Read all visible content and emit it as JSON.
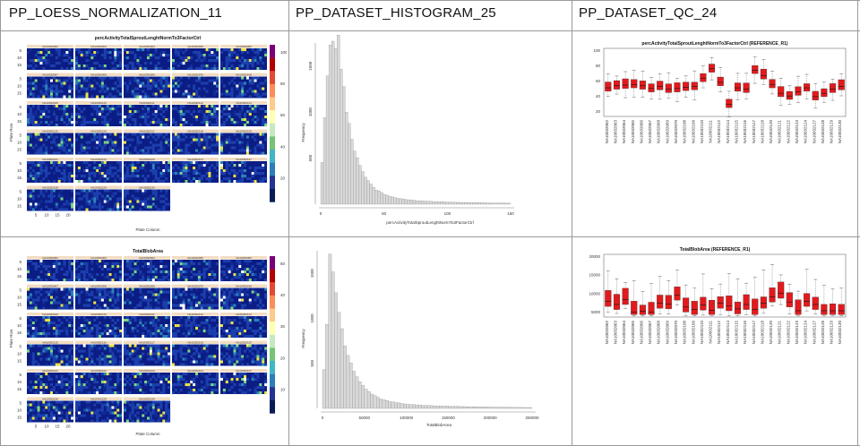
{
  "columns": [
    {
      "id": "loess",
      "label": "PP_LOESS_NORMALIZATION_11"
    },
    {
      "id": "histogram",
      "label": "PP_DATASET_HISTOGRAM_25"
    },
    {
      "id": "qc",
      "label": "PP_DATASET_QC_24"
    }
  ],
  "rows": [
    {
      "heatmap": {
        "title": "percActivityTotalSproutLenghtNormTo3FactorCtrl",
        "xlabel": "Plate Column",
        "ylabel": "Plate Row",
        "plates": [
          "NA10032062",
          "NA10032063",
          "NA10032064",
          "NA10032065",
          "NA10032066",
          "NA10032067",
          "NA10032068",
          "NA10032069",
          "NA10032070",
          "NA10032108",
          "NA10032109",
          "NA10032110",
          "NA10032111",
          "NA10032112",
          "NA10032114",
          "NA10032115",
          "NA10032116",
          "NA10032117",
          "NA10032118",
          "NA10032120",
          "NA10032121",
          "NA10032122",
          "NA10032123",
          "NA10032124",
          "NA10032127",
          "NA10032128",
          "NA10032129",
          "NA10032130"
        ],
        "x_ticks": [
          "5",
          "10",
          "15",
          "20"
        ],
        "y_ticks": [
          "5",
          "10",
          "15"
        ],
        "scale_ticks": [
          "20",
          "40",
          "60",
          "80",
          "100"
        ]
      },
      "histogram": {
        "xlabel": "percActivityTotalSproutLenghtNormTo3FactorCtrl",
        "ylabel": "Frequency",
        "x_ticks": [
          "0",
          "50",
          "100",
          "150"
        ],
        "y_ticks": [
          "500",
          "1000",
          "1500"
        ]
      },
      "qc": {
        "title": "percActivityTotalSproutLenghtNormTo3FactorCtrl (REFERENCE_R1)",
        "y_ticks": [
          "20",
          "40",
          "60",
          "80",
          "100"
        ],
        "categories": [
          "NA10032062",
          "NA10032063",
          "NA10032064",
          "NA10032065",
          "NA10032066",
          "NA10032067",
          "NA10032068",
          "NA10032069",
          "NA10032070",
          "NA10032108",
          "NA10032109",
          "NA10032110",
          "NA10032111",
          "NA10032112",
          "NA10032114",
          "NA10032115",
          "NA10032116",
          "NA10032117",
          "NA10032118",
          "NA10032120",
          "NA10032121",
          "NA10032122",
          "NA10032123",
          "NA10032124",
          "NA10032127",
          "NA10032128",
          "NA10032129",
          "NA10032130"
        ]
      }
    },
    {
      "heatmap": {
        "title": "TotalBlobArea",
        "xlabel": "Plate Column",
        "ylabel": "Plate Row",
        "plates": [
          "NA10032062",
          "NA10032063",
          "NA10032064",
          "NA10032065",
          "NA10032066",
          "NA10032067",
          "NA10032068",
          "NA10032069",
          "NA10032070",
          "NA10032108",
          "NA10032109",
          "NA10032110",
          "NA10032111",
          "NA10032112",
          "NA10032114",
          "NA10032115",
          "NA10032116",
          "NA10032117",
          "NA10032118",
          "NA10032120",
          "NA10032121",
          "NA10032122",
          "NA10032123",
          "NA10032124",
          "NA10032127",
          "NA10032128",
          "NA10032129",
          "NA10032130"
        ],
        "x_ticks": [
          "5",
          "10",
          "15",
          "20"
        ],
        "y_ticks": [
          "5",
          "10",
          "15"
        ],
        "scale_ticks": [
          "10",
          "20",
          "30",
          "40",
          "50"
        ]
      },
      "histogram": {
        "xlabel": "TotalBlobArea",
        "ylabel": "Frequency",
        "x_ticks": [
          "0",
          "50000",
          "100000",
          "150000",
          "200000",
          "250000"
        ],
        "y_ticks": [
          "500",
          "1000",
          "1500"
        ]
      },
      "qc": {
        "title": "TotalBlobArea (REFERENCE_R1)",
        "y_ticks": [
          "5000",
          "10000",
          "15000",
          "20000"
        ],
        "categories": [
          "NA10032062",
          "NA10032063",
          "NA10032064",
          "NA10032065",
          "NA10032066",
          "NA10032067",
          "NA10032068",
          "NA10032069",
          "NA10032070",
          "NA10032108",
          "NA10032109",
          "NA10032110",
          "NA10032111",
          "NA10032112",
          "NA10032114",
          "NA10032115",
          "NA10032116",
          "NA10032117",
          "NA10032118",
          "NA10032120",
          "NA10032121",
          "NA10032122",
          "NA10032123",
          "NA10032124",
          "NA10032127",
          "NA10032128",
          "NA10032129",
          "NA10032130"
        ]
      }
    }
  ],
  "colors": {
    "box_fill": "#e31a1c",
    "heatmap_low": "#0a1a8c",
    "heatmap_high": "#d7301f",
    "histogram_bar": "#cfcfcf"
  }
}
